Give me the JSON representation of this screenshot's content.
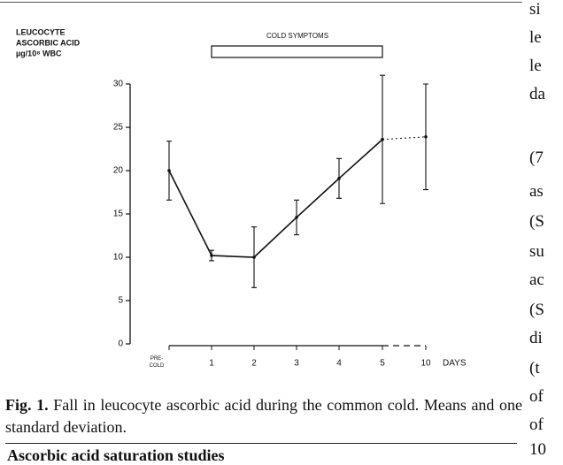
{
  "figure": {
    "chart_data": {
      "type": "line",
      "y_label_lines": [
        "LEUCOCYTE",
        "ASCORBIC ACID",
        "µg/10⁸ WBC"
      ],
      "categories": [
        "PRE-COLD",
        "1",
        "2",
        "3",
        "4",
        "5",
        "10"
      ],
      "x_unit": "DAYS",
      "series": [
        {
          "values": [
            20,
            10.2,
            10,
            14.6,
            19.1,
            23.6,
            23.9
          ],
          "errors": [
            3.4,
            0.6,
            3.5,
            2,
            2.3,
            7.4,
            6.1
          ],
          "color": "#111"
        }
      ],
      "dotted_last_segment": true,
      "ylim": [
        0,
        30
      ],
      "yticks": [
        0,
        5,
        10,
        15,
        20,
        25,
        30
      ],
      "annotation": {
        "text": "COLD SYMPTOMS",
        "start": "1",
        "end": "5"
      }
    },
    "caption": {
      "label": "Fig. 1.",
      "text": "Fall in leucocyte ascorbic acid during the common cold. Means and one standard deviation."
    }
  },
  "next_heading": "Ascorbic acid saturation studies",
  "right_column": [
    "si",
    "le",
    "le",
    "da",
    "(7",
    "as",
    "(S",
    "su",
    "ac",
    "(S",
    "di",
    "(t",
    "of",
    "of",
    "10"
  ]
}
